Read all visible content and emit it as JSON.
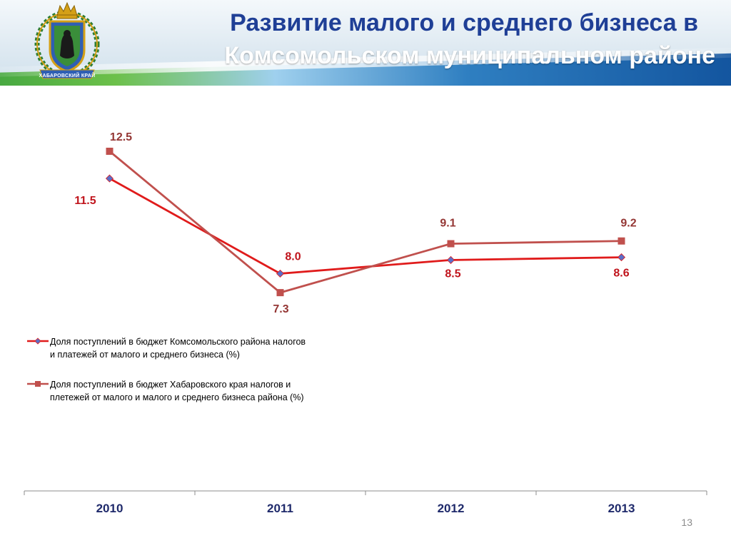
{
  "header": {
    "title_line1": "Развитие малого и среднего бизнеса в",
    "title_line2": "Комсомольском муниципальном районе",
    "emblem_text": "ХАБАРОВСКИЙ КРАЙ",
    "title_color": "#1f3f96"
  },
  "chart_data": {
    "type": "line",
    "categories": [
      "2010",
      "2011",
      "2012",
      "2013"
    ],
    "series": [
      {
        "name": "Доля поступлений в бюджет Комсомольского района налогов и платежей от малого и среднего бизнеса (%)",
        "values": [
          11.5,
          8.0,
          8.5,
          8.6
        ],
        "labels": [
          "11.5",
          "8.0",
          "8.5",
          "8.6"
        ],
        "color": "#e01b1b",
        "label_color": "#c0141c",
        "marker": "diamond",
        "marker_color": "#5b6fc8"
      },
      {
        "name": "Доля поступлений в бюджет Хабаровского края налогов и плетежей от малого и малого и среднего бизнеса района (%)",
        "values": [
          12.5,
          7.3,
          9.1,
          9.2
        ],
        "labels": [
          "12.5",
          "7.3",
          "9.1",
          "9.2"
        ],
        "color": "#c0504d",
        "label_color": "#943634",
        "marker": "square",
        "marker_color": "#c0504d"
      }
    ],
    "legend_position": "left",
    "grid": false
  },
  "legend": {
    "items": [
      {
        "lines": [
          "Доля поступлений в бюджет Комсомольского района налогов",
          "и платежей от малого и среднего бизнеса (%)"
        ]
      },
      {
        "lines": [
          "Доля поступлений в бюджет Хабаровского края налогов и",
          "плетежей от малого и малого и среднего бизнеса района (%)"
        ]
      }
    ]
  },
  "footer": {
    "page_number": "13"
  }
}
